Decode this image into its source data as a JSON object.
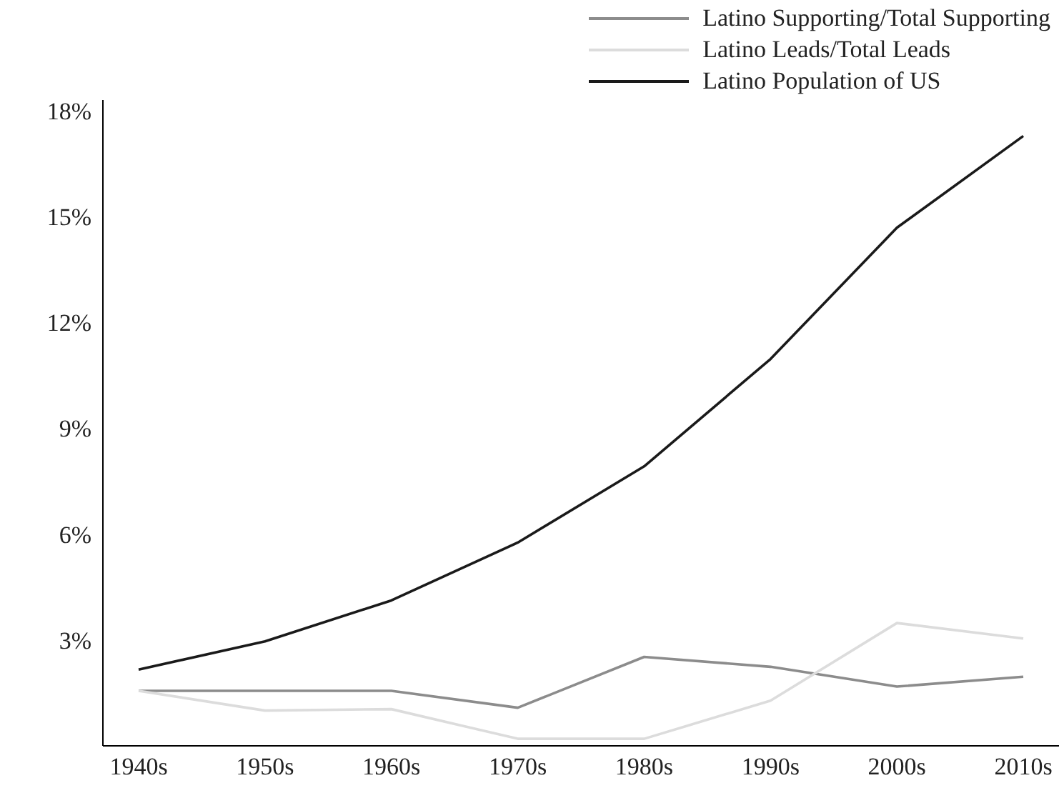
{
  "chart_data": {
    "type": "line",
    "categories": [
      "1940s",
      "1950s",
      "1960s",
      "1970s",
      "1980s",
      "1990s",
      "2000s",
      "2010s"
    ],
    "series": [
      {
        "name": "Latino Supporting/Total Supporting",
        "color": "#8c8c8c",
        "values": [
          1.56,
          1.56,
          1.56,
          1.08,
          2.52,
          2.24,
          1.68,
          1.96
        ]
      },
      {
        "name": "Latino Leads/Total Leads",
        "color": "#dcdcdc",
        "values": [
          1.56,
          1.0,
          1.04,
          0.2,
          0.2,
          1.28,
          3.48,
          3.04
        ]
      },
      {
        "name": "Latino Population of US",
        "color": "#1a1a1a",
        "values": [
          2.16,
          2.96,
          4.12,
          5.76,
          7.92,
          10.96,
          14.68,
          17.28
        ]
      }
    ],
    "ylim": [
      0,
      18.3
    ],
    "yticks": [
      {
        "value": 3,
        "label": "3%"
      },
      {
        "value": 6,
        "label": "6%"
      },
      {
        "value": 9,
        "label": "9%"
      },
      {
        "value": 12,
        "label": "12%"
      },
      {
        "value": 15,
        "label": "15%"
      },
      {
        "value": 18,
        "label": "18%"
      }
    ],
    "grid": false,
    "legend": "top right",
    "marker": "none",
    "line_style": "solid"
  }
}
